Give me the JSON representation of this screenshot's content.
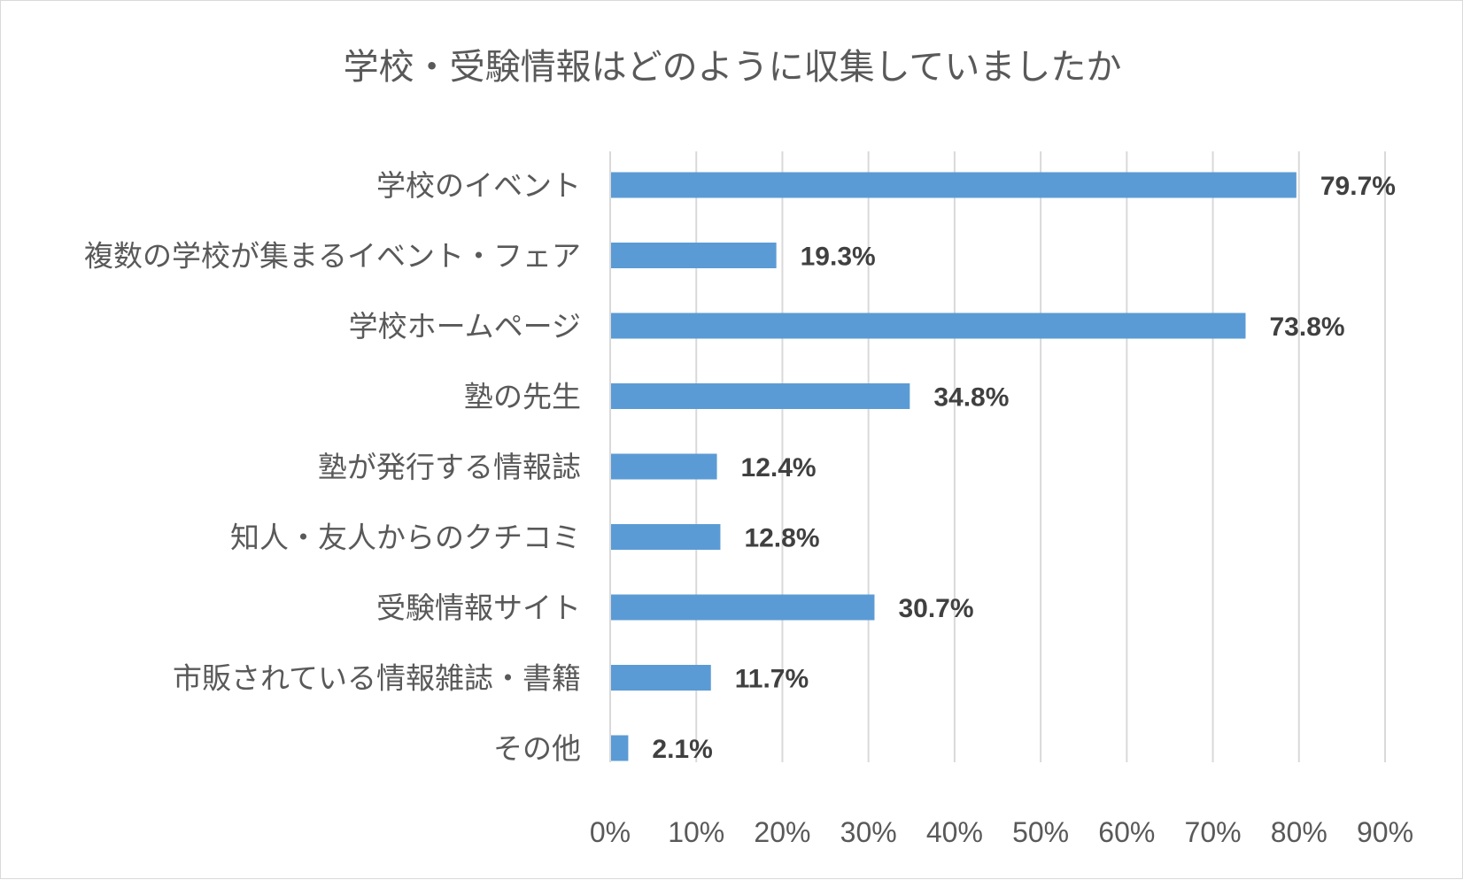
{
  "chart_data": {
    "type": "bar",
    "orientation": "horizontal",
    "title": "学校・受験情報はどのように収集していましたか",
    "categories": [
      "学校のイベント",
      "複数の学校が集まるイベント・フェア",
      "学校ホームページ",
      "塾の先生",
      "塾が発行する情報誌",
      "知人・友人からのクチコミ",
      "受験情報サイト",
      "市販されている情報雑誌・書籍",
      "その他"
    ],
    "values": [
      79.7,
      19.3,
      73.8,
      34.8,
      12.4,
      12.8,
      30.7,
      11.7,
      2.1
    ],
    "data_labels": [
      "79.7%",
      "19.3%",
      "73.8%",
      "34.8%",
      "12.4%",
      "12.8%",
      "30.7%",
      "11.7%",
      "2.1%"
    ],
    "x_ticks": [
      "0%",
      "10%",
      "20%",
      "30%",
      "40%",
      "50%",
      "60%",
      "70%",
      "80%",
      "90%"
    ],
    "xlim": [
      0,
      90
    ],
    "grid": true,
    "bar_color": "#5b9bd5",
    "legend": "none"
  }
}
